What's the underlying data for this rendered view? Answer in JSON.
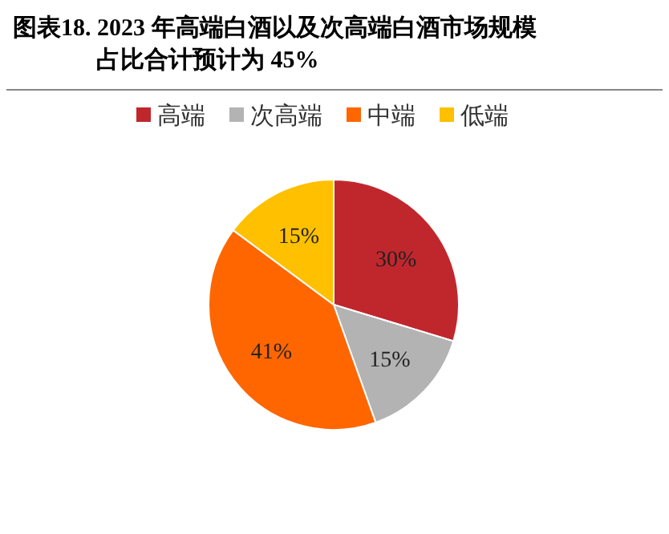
{
  "chart_data": {
    "type": "pie",
    "title": "图表18.  2023 年高端白酒以及次高端白酒市场规模占比合计预计为 45%",
    "categories": [
      "高端",
      "次高端",
      "中端",
      "低端"
    ],
    "values": [
      30,
      15,
      41,
      15
    ],
    "colors": [
      "#c0272d",
      "#b3b3b3",
      "#ff6600",
      "#ffc000"
    ],
    "value_labels": [
      "30%",
      "15%",
      "41%",
      "15%"
    ],
    "legend": "top"
  }
}
